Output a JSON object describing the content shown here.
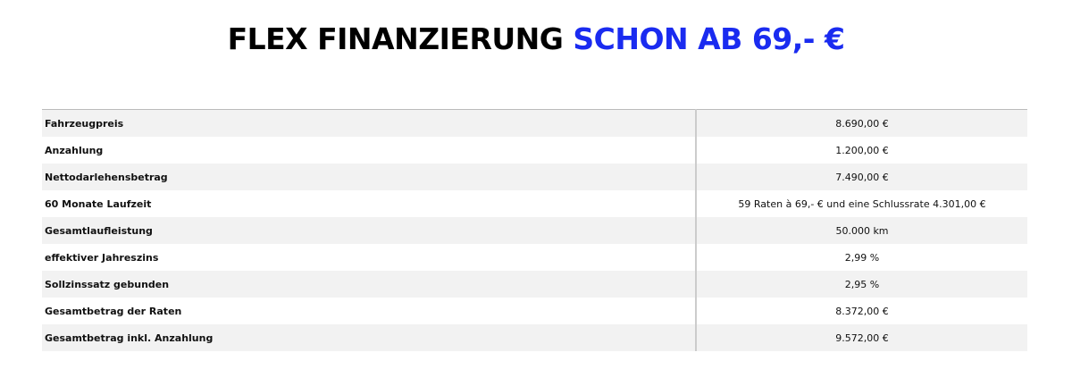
{
  "header": {
    "title": "FLEX FINANZIERUNG",
    "highlight": "SCHON AB 69,- €"
  },
  "table": {
    "rows": [
      [
        "Fahrzeugpreis",
        "8.690,00 €"
      ],
      [
        "Anzahlung",
        "1.200,00 €"
      ],
      [
        "Nettodarlehensbetrag",
        "7.490,00 €"
      ],
      [
        "60 Monate Laufzeit",
        "59 Raten à 69,- € und eine Schlussrate 4.301,00 €"
      ],
      [
        "Gesamtlaufleistung",
        "50.000 km"
      ],
      [
        "effektiver Jahreszins",
        "2,99 %"
      ],
      [
        "Sollzinssatz gebunden",
        "2,95 %"
      ],
      [
        "Gesamtbetrag der Raten",
        "8.372,00 €"
      ],
      [
        "Gesamtbetrag inkl. Anzahlung",
        "9.572,00 €"
      ]
    ]
  }
}
